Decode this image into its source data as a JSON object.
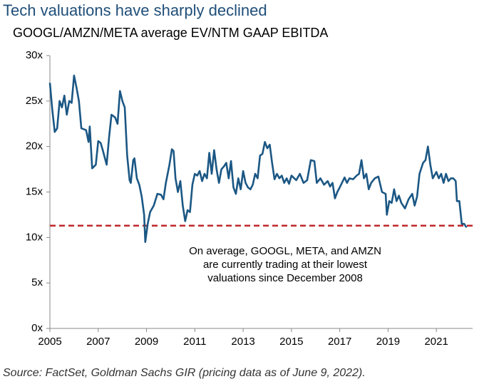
{
  "chart_data": {
    "type": "line",
    "title": "Tech valuations have sharply declined",
    "subtitle": "GOOGL/AMZN/META average EV/NTM GAAP EBITDA",
    "source": "Source: FactSet, Goldman Sachs GIR (pricing data as of June 9, 2022).",
    "annotation": [
      "On average, GOOGL, META, and AMZN",
      "are currently trading at their lowest",
      "valuations since December 2008"
    ],
    "reference_line": {
      "value": 11.3,
      "color": "#c0282e",
      "style": "dashed"
    },
    "xlim": [
      2005,
      2022.5
    ],
    "xticks": [
      2005,
      2007,
      2009,
      2011,
      2013,
      2015,
      2017,
      2019,
      2021
    ],
    "ylim": [
      0,
      30
    ],
    "yticks": [
      {
        "value": 0,
        "label": "0x"
      },
      {
        "value": 5,
        "label": "5x"
      },
      {
        "value": 10,
        "label": "10x"
      },
      {
        "value": 15,
        "label": "15x"
      },
      {
        "value": 20,
        "label": "20x"
      },
      {
        "value": 25,
        "label": "25x"
      },
      {
        "value": 30,
        "label": "30x"
      }
    ],
    "grid": false,
    "x": [
      2005.0,
      2005.1,
      2005.2,
      2005.3,
      2005.4,
      2005.5,
      2005.6,
      2005.7,
      2005.8,
      2005.9,
      2006.0,
      2006.1,
      2006.2,
      2006.3,
      2006.5,
      2006.6,
      2006.65,
      2006.75,
      2006.9,
      2007.0,
      2007.1,
      2007.2,
      2007.35,
      2007.45,
      2007.55,
      2007.7,
      2007.8,
      2007.9,
      2008.0,
      2008.1,
      2008.2,
      2008.3,
      2008.35,
      2008.45,
      2008.5,
      2008.6,
      2008.7,
      2008.8,
      2008.9,
      2008.95,
      2009.05,
      2009.15,
      2009.3,
      2009.45,
      2009.6,
      2009.7,
      2009.8,
      2009.95,
      2010.05,
      2010.12,
      2010.2,
      2010.3,
      2010.4,
      2010.5,
      2010.6,
      2010.7,
      2010.8,
      2010.9,
      2011.0,
      2011.1,
      2011.2,
      2011.3,
      2011.4,
      2011.5,
      2011.6,
      2011.7,
      2011.8,
      2011.9,
      2012.0,
      2012.1,
      2012.2,
      2012.3,
      2012.4,
      2012.5,
      2012.6,
      2012.7,
      2012.8,
      2012.9,
      2013.0,
      2013.1,
      2013.2,
      2013.3,
      2013.4,
      2013.5,
      2013.6,
      2013.7,
      2013.8,
      2013.9,
      2014.0,
      2014.1,
      2014.2,
      2014.3,
      2014.4,
      2014.5,
      2014.6,
      2014.7,
      2014.8,
      2014.9,
      2015.0,
      2015.2,
      2015.35,
      2015.5,
      2015.65,
      2015.8,
      2015.95,
      2016.05,
      2016.2,
      2016.35,
      2016.5,
      2016.6,
      2016.7,
      2016.8,
      2016.9,
      2017.0,
      2017.2,
      2017.3,
      2017.4,
      2017.55,
      2017.7,
      2017.8,
      2017.9,
      2018.0,
      2018.1,
      2018.2,
      2018.3,
      2018.45,
      2018.6,
      2018.75,
      2018.9,
      2018.95,
      2019.05,
      2019.15,
      2019.25,
      2019.35,
      2019.45,
      2019.55,
      2019.7,
      2019.85,
      2020.0,
      2020.1,
      2020.2,
      2020.3,
      2020.45,
      2020.55,
      2020.65,
      2020.75,
      2020.85,
      2021.0,
      2021.1,
      2021.2,
      2021.3,
      2021.4,
      2021.5,
      2021.6,
      2021.7,
      2021.8,
      2021.85,
      2021.95,
      2022.05,
      2022.15,
      2022.25
    ],
    "series": [
      {
        "color": "#1b5784",
        "values": [
          27,
          24,
          21.6,
          22,
          25,
          24.3,
          25.6,
          23.5,
          25,
          24.8,
          27.8,
          26.5,
          25,
          22,
          21.8,
          20.5,
          22.2,
          17.6,
          18,
          20.6,
          20.4,
          19.5,
          18,
          21,
          23.5,
          23.2,
          22.5,
          26.1,
          25,
          24.3,
          19,
          16.3,
          16,
          18.5,
          18.7,
          16.5,
          15.8,
          14.5,
          12.5,
          9.5,
          11.5,
          12.8,
          13.5,
          14.8,
          14.7,
          14.2,
          16,
          18,
          19.7,
          19.5,
          16.5,
          15,
          16.2,
          13.5,
          11.8,
          13,
          12.8,
          15.8,
          17,
          16.8,
          17.3,
          16.2,
          17,
          16.5,
          19.3,
          17,
          19.6,
          17.5,
          16,
          17.5,
          17.8,
          18.2,
          16.5,
          18.4,
          15.5,
          14.8,
          16.5,
          15.3,
          17.3,
          16,
          15.5,
          15.3,
          15.8,
          17,
          16.5,
          19,
          19.2,
          20.5,
          19.8,
          20.2,
          18.2,
          16.4,
          17,
          16.5,
          16.8,
          16,
          16.5,
          15.9,
          16.8,
          16.3,
          17,
          16,
          16.3,
          18.5,
          18.4,
          16,
          16.5,
          15.8,
          16.2,
          15.6,
          16,
          14.3,
          15,
          15.5,
          16.6,
          16,
          16.5,
          16.4,
          16.8,
          17,
          18.5,
          16.5,
          17,
          15.3,
          16,
          16.5,
          16.7,
          15,
          14.8,
          12.5,
          14,
          13.8,
          15.3,
          14,
          14.6,
          13.8,
          13.2,
          14.2,
          14.8,
          13.5,
          14.5,
          17,
          18.2,
          18.5,
          20,
          18,
          16.5,
          17.2,
          16.5,
          17,
          16,
          17,
          16.2,
          16.5,
          16.5,
          16.2,
          14,
          14,
          11.5,
          11.5,
          11.1
        ]
      }
    ]
  }
}
